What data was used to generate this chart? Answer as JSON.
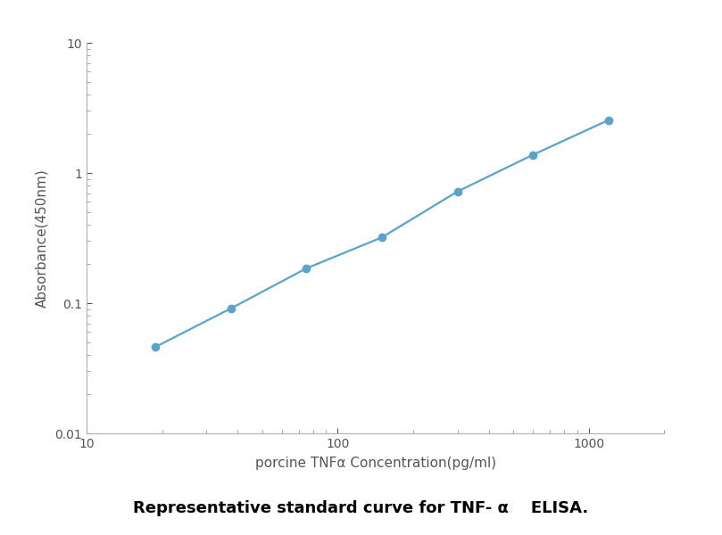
{
  "x_data": [
    18.75,
    37.5,
    75,
    150,
    300,
    600,
    1200
  ],
  "y_data": [
    0.046,
    0.091,
    0.185,
    0.32,
    0.72,
    1.38,
    2.55
  ],
  "line_color": "#5BA3C9",
  "marker_color": "#5BA3C9",
  "marker_size": 6,
  "line_width": 1.6,
  "xlabel": "porcine TNFα Concentration(pg/ml)",
  "ylabel": "Absorbance(450nm)",
  "xlim": [
    10,
    2000
  ],
  "ylim": [
    0.01,
    10
  ],
  "caption": "Representative standard curve for TNF- α    ELISA.",
  "caption_fontsize": 13,
  "axis_label_fontsize": 11,
  "tick_fontsize": 10,
  "figure_bg": "#ffffff",
  "plot_bg": "#ffffff",
  "spine_color": "#b0b0b0",
  "tick_color": "#909090"
}
